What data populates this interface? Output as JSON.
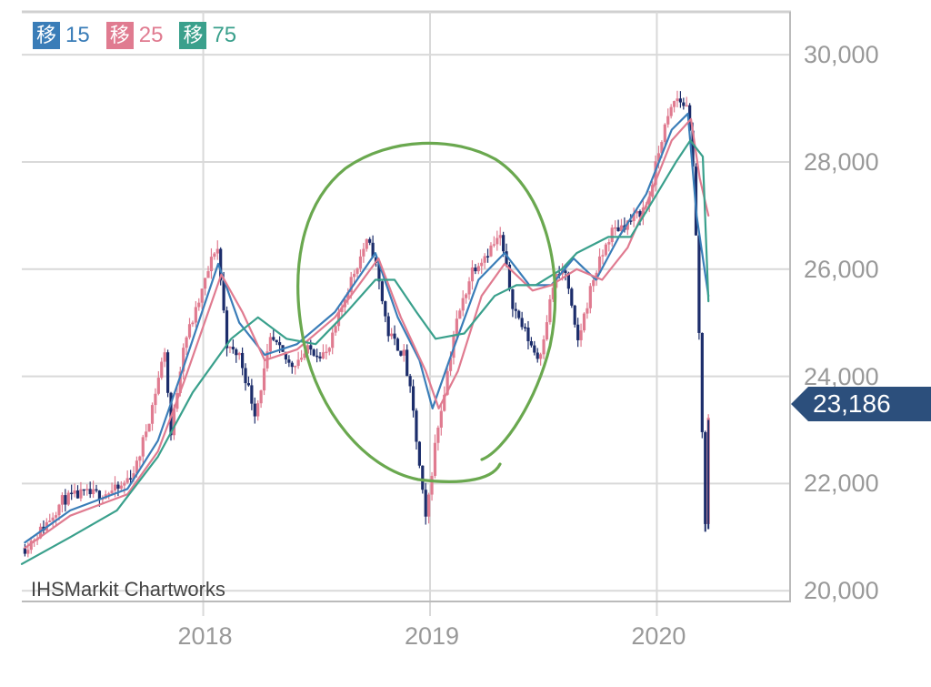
{
  "legend": [
    {
      "box": "移",
      "value": "15",
      "color": "#3a7db8"
    },
    {
      "box": "移",
      "value": "25",
      "color": "#e07b90"
    },
    {
      "box": "移",
      "value": "75",
      "color": "#3aa08c"
    }
  ],
  "source": "IHSMarkit Chartworks",
  "last_price": "23,186",
  "colors": {
    "candle_down": "#1c2d6b",
    "candle_up": "#e07b90",
    "ma15": "#3a7db8",
    "ma25": "#e07b90",
    "ma75": "#3aa08c",
    "annotation": "#6aa84f",
    "last_price_bg": "#2c4f7c",
    "grid": "#d9d9d9"
  },
  "chart_data": {
    "type": "line",
    "y_ticks": [
      "30,000",
      "28,000",
      "26,000",
      "24,000",
      "22,000",
      "20,000"
    ],
    "x_ticks": [
      "2018",
      "2019",
      "2020"
    ],
    "ylim": [
      19800,
      30800
    ],
    "xlim": [
      "2017-03-15",
      "2020-08-01"
    ],
    "grid": true,
    "legend_position": "top-left",
    "series": [
      {
        "name": "price",
        "x": [
          "2017-03-20",
          "2017-04-20",
          "2017-05-20",
          "2017-06-20",
          "2017-07-20",
          "2017-08-20",
          "2017-09-15",
          "2017-10-10",
          "2017-10-31",
          "2017-11-10",
          "2017-11-30",
          "2017-12-20",
          "2018-01-23",
          "2018-02-09",
          "2018-02-28",
          "2018-03-26",
          "2018-04-20",
          "2018-05-21",
          "2018-06-20",
          "2018-07-20",
          "2018-08-20",
          "2018-09-20",
          "2018-10-02",
          "2018-10-26",
          "2018-11-20",
          "2018-12-03",
          "2018-12-25",
          "2019-01-10",
          "2019-02-10",
          "2019-03-10",
          "2019-04-24",
          "2019-05-15",
          "2019-06-04",
          "2019-06-25",
          "2019-07-20",
          "2019-08-06",
          "2019-08-26",
          "2019-09-20",
          "2019-10-20",
          "2019-11-20",
          "2019-12-17",
          "2020-01-10",
          "2020-01-31",
          "2020-02-21",
          "2020-03-02",
          "2020-03-10",
          "2020-03-19",
          "2020-03-24"
        ],
        "values": [
          20800,
          21200,
          21700,
          21800,
          21800,
          21900,
          22300,
          23400,
          24500,
          22900,
          24600,
          25200,
          26500,
          24500,
          24400,
          23300,
          24700,
          24200,
          24500,
          24400,
          25600,
          26500,
          26300,
          24800,
          24400,
          23500,
          21300,
          22800,
          24900,
          26000,
          26600,
          25300,
          24800,
          24300,
          25800,
          26000,
          24600,
          25800,
          26700,
          26900,
          27200,
          28500,
          29200,
          29000,
          27300,
          24400,
          21300,
          23186
        ]
      },
      {
        "name": "15",
        "x": [
          "2017-03-20",
          "2017-06-01",
          "2017-09-01",
          "2017-10-20",
          "2017-12-01",
          "2018-01-25",
          "2018-02-28",
          "2018-04-10",
          "2018-06-01",
          "2018-08-01",
          "2018-10-05",
          "2018-11-10",
          "2018-12-15",
          "2019-01-05",
          "2019-02-01",
          "2019-03-20",
          "2019-05-01",
          "2019-06-10",
          "2019-07-15",
          "2019-08-20",
          "2019-09-25",
          "2019-11-01",
          "2019-12-15",
          "2020-01-25",
          "2020-02-20",
          "2020-03-05",
          "2020-03-24"
        ],
        "values": [
          20900,
          21500,
          21900,
          22800,
          24200,
          26100,
          25000,
          24400,
          24600,
          25200,
          26300,
          25100,
          24300,
          23400,
          24300,
          25800,
          26300,
          25700,
          25700,
          26200,
          25800,
          26600,
          27400,
          28600,
          28900,
          27000,
          25500
        ]
      },
      {
        "name": "25",
        "x": [
          "2017-03-20",
          "2017-06-01",
          "2017-09-01",
          "2017-10-20",
          "2017-12-01",
          "2018-01-30",
          "2018-03-05",
          "2018-04-10",
          "2018-06-01",
          "2018-08-01",
          "2018-10-10",
          "2018-11-15",
          "2018-12-25",
          "2019-01-15",
          "2019-02-15",
          "2019-03-25",
          "2019-05-01",
          "2019-06-15",
          "2019-07-15",
          "2019-08-25",
          "2019-10-05",
          "2019-11-15",
          "2019-12-15",
          "2020-01-25",
          "2020-02-25",
          "2020-03-10",
          "2020-03-24"
        ],
        "values": [
          20800,
          21400,
          21800,
          22600,
          23900,
          25900,
          25200,
          24300,
          24500,
          25100,
          26200,
          25100,
          24100,
          23400,
          24100,
          25500,
          26100,
          25600,
          25700,
          26000,
          25800,
          26400,
          27200,
          28400,
          28800,
          27700,
          27000
        ]
      },
      {
        "name": "75",
        "x": [
          "2017-03-15",
          "2017-06-01",
          "2017-08-15",
          "2017-10-20",
          "2017-12-15",
          "2018-02-15",
          "2018-03-30",
          "2018-05-15",
          "2018-07-01",
          "2018-08-20",
          "2018-10-05",
          "2018-11-05",
          "2018-12-10",
          "2019-01-10",
          "2019-02-25",
          "2019-04-15",
          "2019-05-20",
          "2019-06-20",
          "2019-08-01",
          "2019-08-25",
          "2019-10-15",
          "2019-11-20",
          "2020-01-01",
          "2020-02-01",
          "2020-02-24",
          "2020-03-15",
          "2020-03-24"
        ],
        "values": [
          20500,
          21000,
          21500,
          22500,
          23700,
          24700,
          25100,
          24700,
          24600,
          25200,
          25800,
          25800,
          25200,
          24700,
          24800,
          25500,
          25700,
          25700,
          26000,
          26300,
          26600,
          26600,
          27400,
          28000,
          28400,
          28100,
          25400
        ]
      }
    ]
  }
}
